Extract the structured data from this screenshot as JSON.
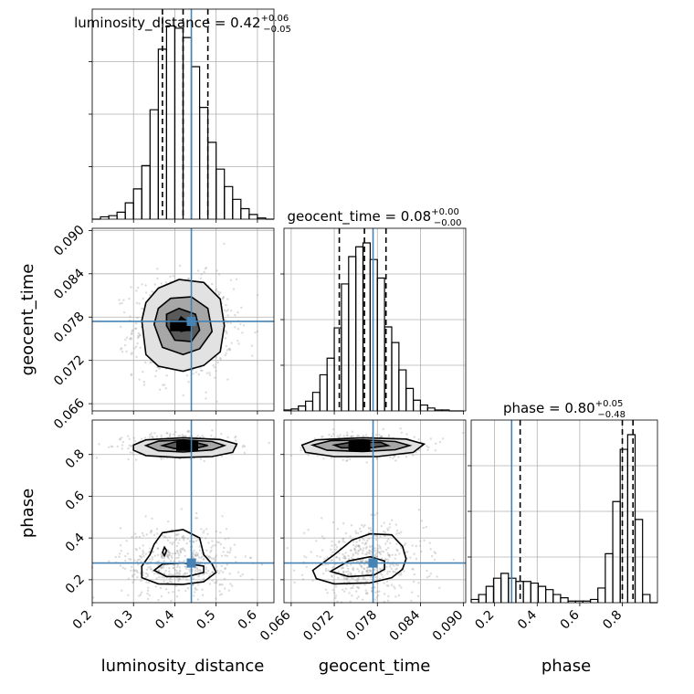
{
  "chart_data": {
    "type": "corner",
    "parameters": [
      "luminosity_distance",
      "geocent_time",
      "phase"
    ],
    "axis_labels": {
      "luminosity_distance": "luminosity_distance",
      "geocent_time": "geocent_time",
      "phase": "phase"
    },
    "titles": [
      {
        "param": "luminosity_distance",
        "text": "luminosity_distance = 0.42",
        "plus": "+0.06",
        "minus": "−0.05"
      },
      {
        "param": "geocent_time",
        "text": "geocent_time = 0.08",
        "plus": "+0.00",
        "minus": "−0.00"
      },
      {
        "param": "phase",
        "text": "phase = 0.80",
        "plus": "+0.05",
        "minus": "−0.48"
      }
    ],
    "ranges": {
      "luminosity_distance": [
        0.2,
        0.64
      ],
      "geocent_time": [
        0.065,
        0.0903
      ],
      "phase": [
        0.09,
        0.965
      ]
    },
    "ticks": {
      "luminosity_distance": {
        "values": [
          0.2,
          0.3,
          0.4,
          0.5,
          0.6
        ],
        "labels": [
          "0.2",
          "0.3",
          "0.4",
          "0.5",
          "0.6"
        ]
      },
      "geocent_time": {
        "values": [
          0.066,
          0.072,
          0.078,
          0.084,
          0.09
        ],
        "labels": [
          "0.066",
          "0.072",
          "0.078",
          "0.084",
          "0.090"
        ]
      },
      "phase": {
        "values": [
          0.2,
          0.4,
          0.6,
          0.8
        ],
        "labels": [
          "0.2",
          "0.4",
          "0.6",
          "0.8"
        ]
      }
    },
    "truths": {
      "luminosity_distance": 0.44,
      "geocent_time": 0.0774,
      "phase": 0.28
    },
    "quantiles": {
      "luminosity_distance": [
        0.37,
        0.42,
        0.48
      ],
      "geocent_time": [
        0.0727,
        0.0762,
        0.0792
      ],
      "phase": [
        0.32,
        0.8,
        0.85
      ]
    },
    "histograms": {
      "luminosity_distance": {
        "edges": [
          0.2,
          0.22,
          0.24,
          0.26,
          0.28,
          0.3,
          0.32,
          0.34,
          0.36,
          0.38,
          0.4,
          0.42,
          0.44,
          0.46,
          0.48,
          0.5,
          0.52,
          0.54,
          0.56,
          0.58,
          0.6,
          0.62,
          0.64
        ],
        "counts": [
          0,
          2,
          3,
          6,
          14,
          26,
          46,
          94,
          146,
          166,
          164,
          156,
          131,
          96,
          66,
          43,
          28,
          17,
          9,
          4,
          1,
          0
        ]
      },
      "geocent_time": {
        "edges": [
          0.065,
          0.066,
          0.067,
          0.068,
          0.069,
          0.07,
          0.071,
          0.072,
          0.073,
          0.074,
          0.075,
          0.076,
          0.077,
          0.078,
          0.079,
          0.08,
          0.081,
          0.082,
          0.083,
          0.084,
          0.085,
          0.086,
          0.087,
          0.088,
          0.089,
          0.09
        ],
        "counts": [
          1,
          2,
          5,
          10,
          19,
          37,
          54,
          85,
          130,
          158,
          168,
          172,
          155,
          136,
          86,
          70,
          42,
          23,
          11,
          6,
          3,
          1,
          1,
          0,
          0
        ]
      },
      "phase": {
        "edges": [
          0.09,
          0.125,
          0.16,
          0.195,
          0.23,
          0.265,
          0.3,
          0.335,
          0.37,
          0.405,
          0.44,
          0.475,
          0.51,
          0.545,
          0.58,
          0.615,
          0.65,
          0.685,
          0.72,
          0.755,
          0.79,
          0.825,
          0.86,
          0.895,
          0.93,
          0.965
        ],
        "counts": [
          2,
          5,
          10,
          15,
          18,
          15,
          13,
          13,
          12,
          10,
          8,
          5,
          3,
          1,
          1,
          1,
          2,
          9,
          30,
          62,
          94,
          103,
          51,
          5,
          0
        ]
      }
    },
    "contours": {
      "geocent_time_vs_luminosity_distance": [
        {
          "level": "outer",
          "points": [
            [
              0.32,
              0.0775
            ],
            [
              0.33,
              0.0728
            ],
            [
              0.36,
              0.0712
            ],
            [
              0.42,
              0.0705
            ],
            [
              0.47,
              0.0713
            ],
            [
              0.51,
              0.0732
            ],
            [
              0.52,
              0.0768
            ],
            [
              0.51,
              0.0805
            ],
            [
              0.47,
              0.0828
            ],
            [
              0.41,
              0.0832
            ],
            [
              0.36,
              0.082
            ],
            [
              0.33,
              0.08
            ]
          ]
        },
        {
          "level": "middle",
          "points": [
            [
              0.35,
              0.077
            ],
            [
              0.37,
              0.0738
            ],
            [
              0.42,
              0.0728
            ],
            [
              0.46,
              0.0736
            ],
            [
              0.49,
              0.076
            ],
            [
              0.48,
              0.0792
            ],
            [
              0.44,
              0.0808
            ],
            [
              0.39,
              0.0806
            ],
            [
              0.36,
              0.0792
            ]
          ]
        },
        {
          "level": "inner",
          "points": [
            [
              0.38,
              0.0768
            ],
            [
              0.4,
              0.0748
            ],
            [
              0.44,
              0.0746
            ],
            [
              0.46,
              0.0762
            ],
            [
              0.45,
              0.0784
            ],
            [
              0.41,
              0.0792
            ],
            [
              0.38,
              0.0784
            ]
          ]
        },
        {
          "level": "core",
          "points": [
            [
              0.405,
              0.077
            ],
            [
              0.415,
              0.076
            ],
            [
              0.43,
              0.0762
            ],
            [
              0.43,
              0.0774
            ],
            [
              0.415,
              0.078
            ]
          ]
        }
      ],
      "phase_vs_luminosity_distance": [
        {
          "level": "outer",
          "points": [
            [
              0.3,
              0.845
            ],
            [
              0.33,
              0.87
            ],
            [
              0.42,
              0.88
            ],
            [
              0.51,
              0.872
            ],
            [
              0.55,
              0.85
            ],
            [
              0.54,
              0.81
            ],
            [
              0.49,
              0.79
            ],
            [
              0.41,
              0.785
            ],
            [
              0.33,
              0.795
            ],
            [
              0.3,
              0.82
            ]
          ]
        },
        {
          "level": "middle",
          "points": [
            [
              0.33,
              0.843
            ],
            [
              0.36,
              0.864
            ],
            [
              0.42,
              0.87
            ],
            [
              0.49,
              0.862
            ],
            [
              0.52,
              0.843
            ],
            [
              0.49,
              0.822
            ],
            [
              0.42,
              0.812
            ],
            [
              0.36,
              0.818
            ]
          ]
        },
        {
          "level": "inner",
          "points": [
            [
              0.37,
              0.843
            ],
            [
              0.4,
              0.86
            ],
            [
              0.45,
              0.858
            ],
            [
              0.48,
              0.843
            ],
            [
              0.45,
              0.83
            ],
            [
              0.4,
              0.828
            ]
          ]
        },
        {
          "level": "outer",
          "points": [
            [
              0.32,
              0.265
            ],
            [
              0.32,
              0.21
            ],
            [
              0.36,
              0.18
            ],
            [
              0.42,
              0.178
            ],
            [
              0.47,
              0.19
            ],
            [
              0.5,
              0.235
            ],
            [
              0.49,
              0.275
            ],
            [
              0.47,
              0.32
            ],
            [
              0.46,
              0.4
            ],
            [
              0.42,
              0.44
            ],
            [
              0.37,
              0.425
            ],
            [
              0.35,
              0.37
            ],
            [
              0.34,
              0.32
            ]
          ]
        },
        {
          "level": "middle",
          "points": [
            [
              0.35,
              0.245
            ],
            [
              0.38,
              0.215
            ],
            [
              0.43,
              0.215
            ],
            [
              0.47,
              0.235
            ],
            [
              0.47,
              0.265
            ],
            [
              0.42,
              0.28
            ],
            [
              0.37,
              0.275
            ]
          ]
        },
        {
          "level": "inner",
          "points": [
            [
              0.37,
              0.33
            ],
            [
              0.375,
              0.355
            ],
            [
              0.38,
              0.34
            ],
            [
              0.375,
              0.315
            ]
          ]
        }
      ],
      "phase_vs_geocent_time": [
        {
          "level": "outer",
          "points": [
            [
              0.0675,
              0.845
            ],
            [
              0.0695,
              0.87
            ],
            [
              0.076,
              0.88
            ],
            [
              0.082,
              0.874
            ],
            [
              0.0845,
              0.85
            ],
            [
              0.083,
              0.81
            ],
            [
              0.078,
              0.79
            ],
            [
              0.072,
              0.79
            ],
            [
              0.068,
              0.81
            ]
          ]
        },
        {
          "level": "middle",
          "points": [
            [
              0.069,
              0.845
            ],
            [
              0.0715,
              0.866
            ],
            [
              0.076,
              0.87
            ],
            [
              0.0805,
              0.862
            ],
            [
              0.0825,
              0.843
            ],
            [
              0.0805,
              0.823
            ],
            [
              0.076,
              0.814
            ],
            [
              0.071,
              0.82
            ]
          ]
        },
        {
          "level": "inner",
          "points": [
            [
              0.072,
              0.845
            ],
            [
              0.0745,
              0.86
            ],
            [
              0.0785,
              0.858
            ],
            [
              0.0795,
              0.843
            ],
            [
              0.077,
              0.832
            ],
            [
              0.073,
              0.832
            ]
          ]
        },
        {
          "level": "outer",
          "points": [
            [
              0.069,
              0.245
            ],
            [
              0.0695,
              0.205
            ],
            [
              0.072,
              0.18
            ],
            [
              0.077,
              0.185
            ],
            [
              0.08,
              0.21
            ],
            [
              0.0815,
              0.25
            ],
            [
              0.082,
              0.3
            ],
            [
              0.0815,
              0.36
            ],
            [
              0.08,
              0.415
            ],
            [
              0.077,
              0.42
            ],
            [
              0.0745,
              0.39
            ],
            [
              0.072,
              0.32
            ]
          ]
        },
        {
          "level": "middle",
          "points": [
            [
              0.0715,
              0.24
            ],
            [
              0.074,
              0.215
            ],
            [
              0.0775,
              0.222
            ],
            [
              0.079,
              0.25
            ],
            [
              0.079,
              0.29
            ],
            [
              0.077,
              0.31
            ],
            [
              0.074,
              0.29
            ]
          ]
        }
      ]
    },
    "density_cores": {
      "geocent_time_vs_luminosity_distance": [
        [
          0.415,
          0.0768
        ]
      ],
      "phase_vs_luminosity_distance": [
        [
          0.43,
          0.843
        ]
      ],
      "phase_vs_geocent_time": [
        [
          0.0755,
          0.843
        ]
      ]
    },
    "grid": true
  }
}
